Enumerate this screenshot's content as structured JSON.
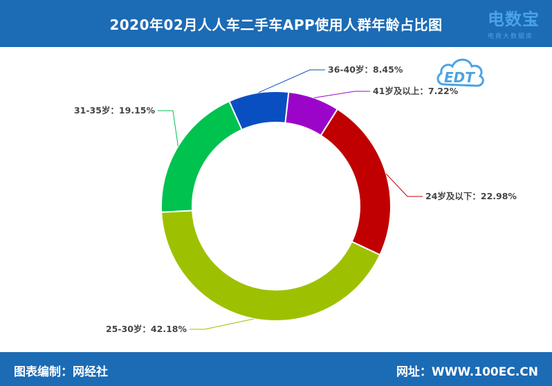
{
  "header": {
    "title": "2020年02月人人车二手车APP使用人群年龄占比图"
  },
  "footer": {
    "left": "图表编制：网经社",
    "right": "网址：WWW.100EC.CN"
  },
  "logo": {
    "name": "电数宝",
    "sub": "电商大数据库",
    "mark": "EDT"
  },
  "colors": {
    "header_bg": "#1c6bb5",
    "footer_bg": "#1c6bb5"
  },
  "chart_data": {
    "type": "pie",
    "donut": true,
    "title": "2020年02月人人车二手车APP使用人群年龄占比图",
    "unit": "%",
    "slices": [
      {
        "name": "36-40岁",
        "value": 8.45,
        "label": "36-40岁：8.45%",
        "color": "#0a4fc2"
      },
      {
        "name": "41岁及以上",
        "value": 7.22,
        "label": "41岁及以上：7.22%",
        "color": "#9b05c9"
      },
      {
        "name": "24岁及以下",
        "value": 22.98,
        "label": "24岁及以下：22.98%",
        "color": "#c00000"
      },
      {
        "name": "25-30岁",
        "value": 42.18,
        "label": "25-30岁：42.18%",
        "color": "#9dc100"
      },
      {
        "name": "31-35岁",
        "value": 19.15,
        "label": "31-35岁：19.15%",
        "color": "#00c24f"
      }
    ]
  }
}
